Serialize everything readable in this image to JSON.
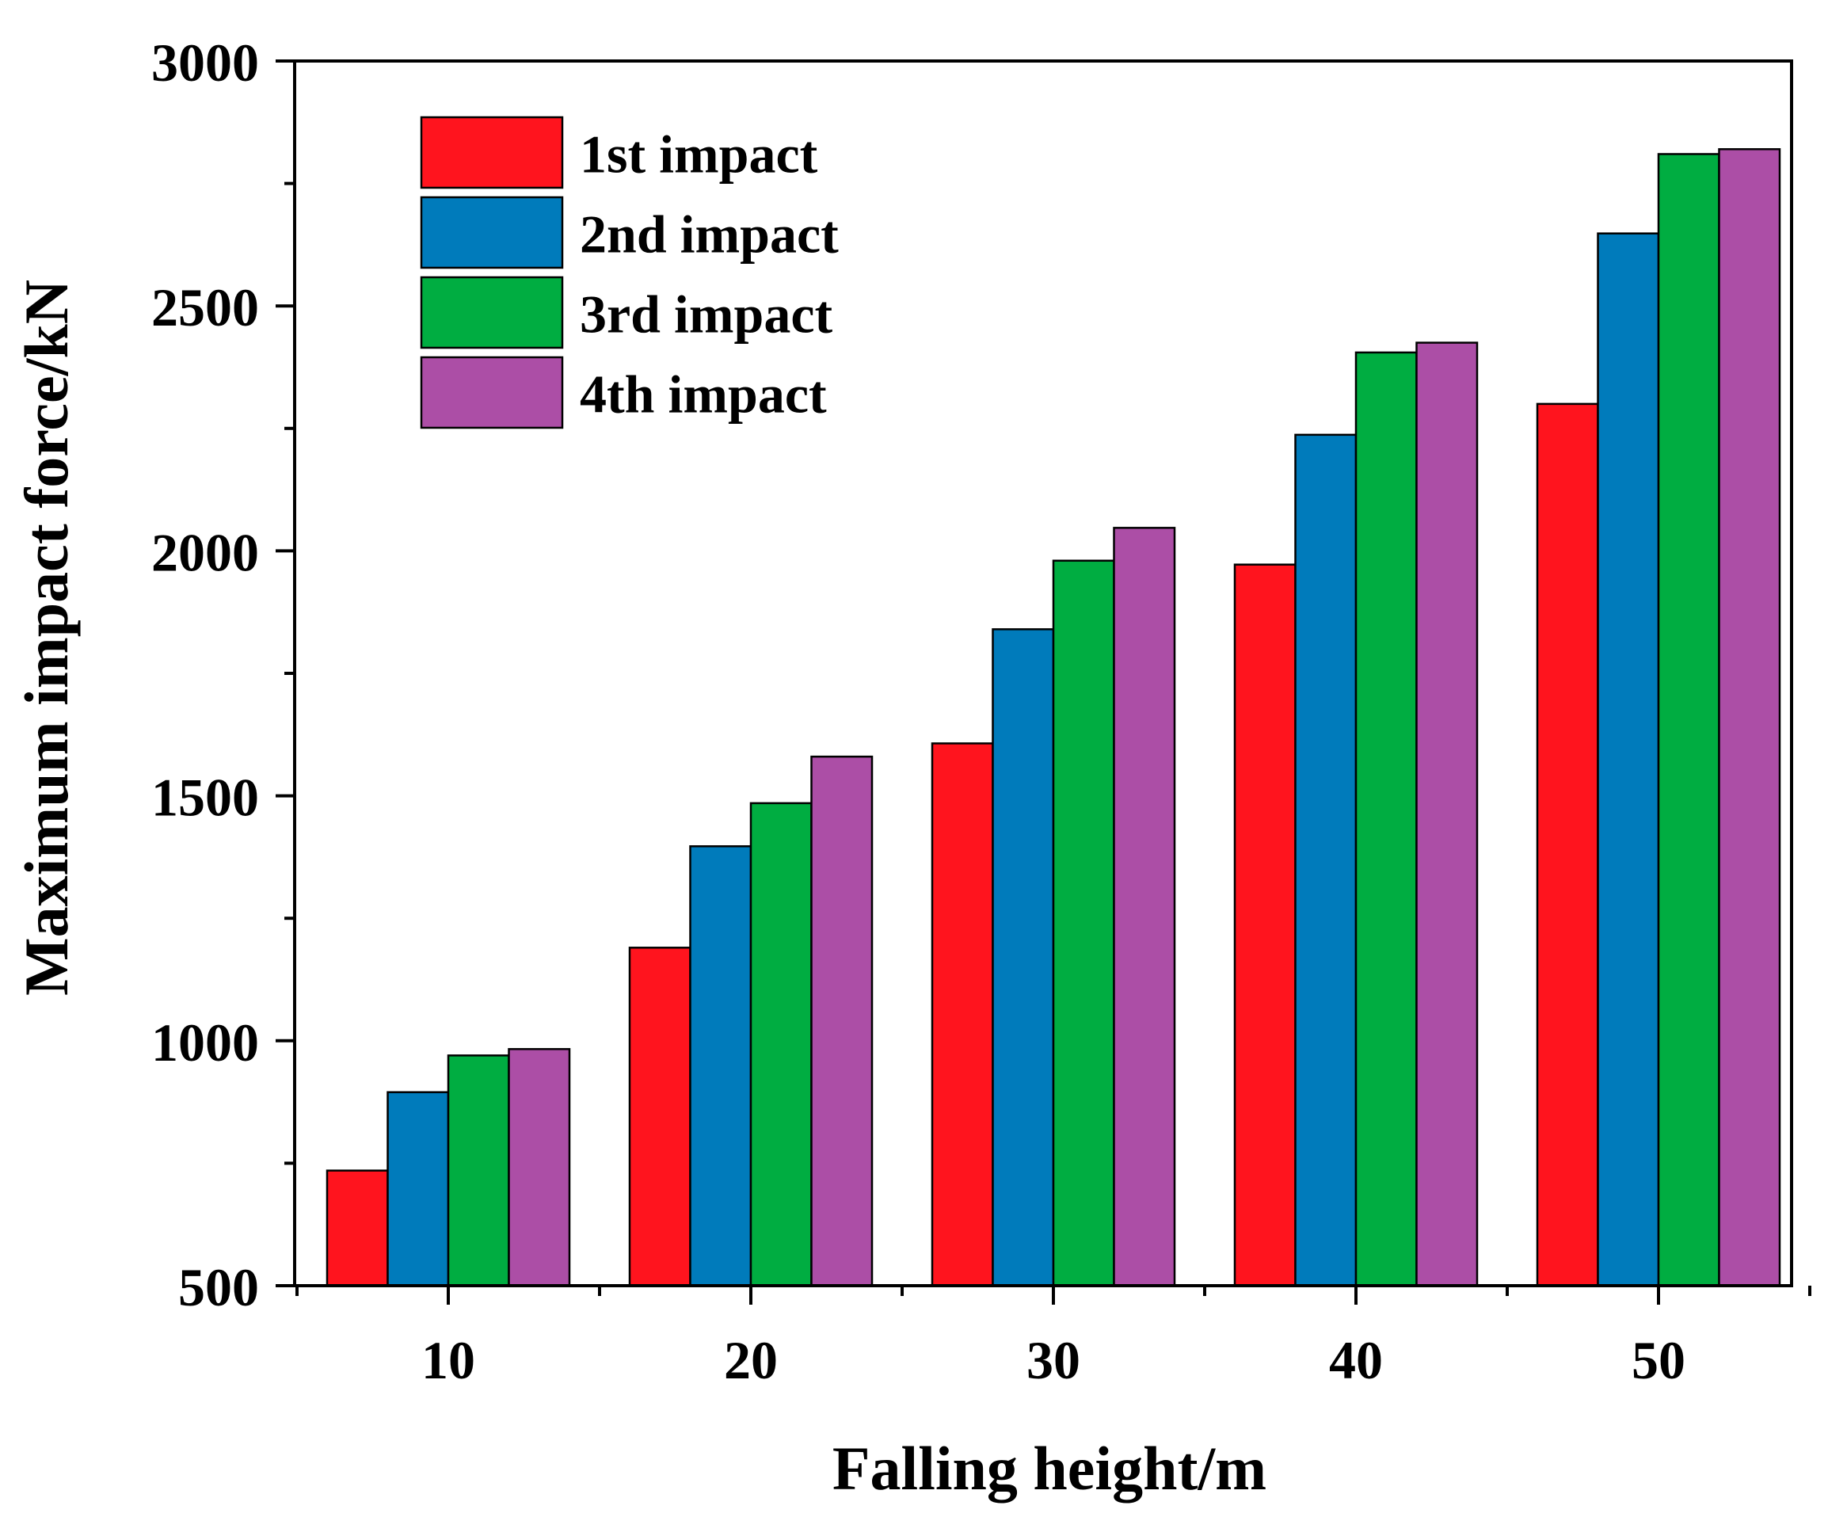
{
  "chart_data": {
    "type": "bar",
    "title": "",
    "xlabel": "Falling height/m",
    "ylabel": "Maximum impact force/kN",
    "categories": [
      "10",
      "20",
      "30",
      "40",
      "50"
    ],
    "ylim": [
      500,
      3000
    ],
    "yticks": [
      "500",
      "1000",
      "1500",
      "2000",
      "2500",
      "3000"
    ],
    "legend_position": "top-left",
    "series": [
      {
        "name": "1st impact",
        "color": "#FF141E",
        "values": [
          735,
          1190,
          1607,
          1972,
          2300
        ]
      },
      {
        "name": "2nd impact",
        "color": "#007BBB",
        "values": [
          895,
          1397,
          1840,
          2237,
          2648
        ]
      },
      {
        "name": "3rd impact",
        "color": "#00AD41",
        "values": [
          970,
          1485,
          1980,
          2405,
          2810
        ]
      },
      {
        "name": "4th impact",
        "color": "#AC4EA6",
        "values": [
          983,
          1580,
          2047,
          2425,
          2820
        ]
      }
    ]
  }
}
